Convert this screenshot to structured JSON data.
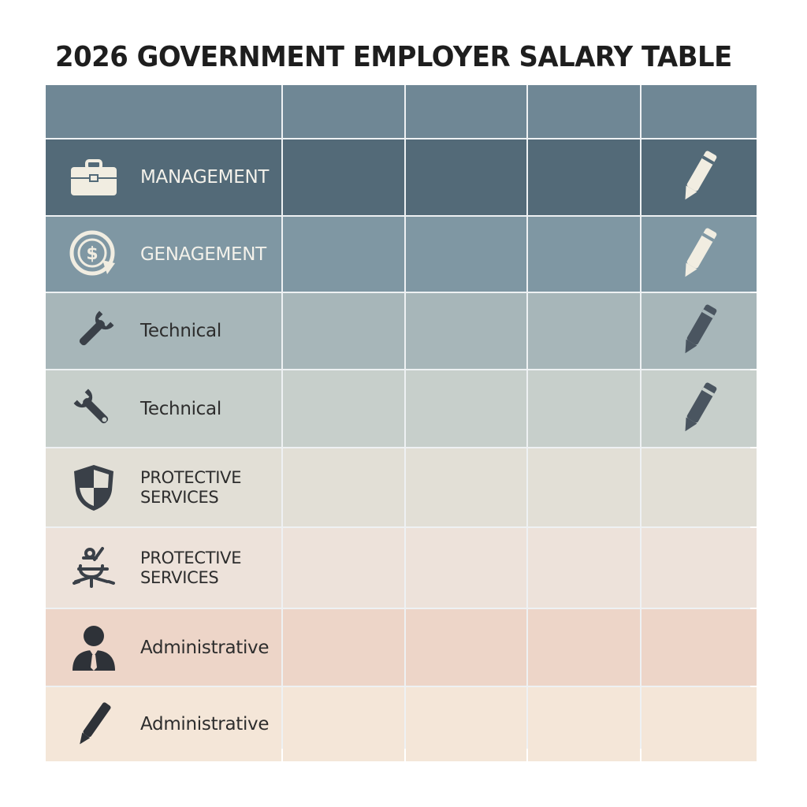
{
  "title": "2026 GOVERNMENT EMPLOYER SALARY TABLE",
  "colors": {
    "row_colors": [
      "#6f8795",
      "#536a78",
      "#7f97a3",
      "#a7b6b9",
      "#c7cfcb",
      "#e2dfd6",
      "#ede2da",
      "#edd5c8",
      "#f4e6d8"
    ],
    "light_icon": "#f1ede1",
    "dark_icon": "#3a4048"
  },
  "rows": [
    {
      "label": "MANAGEMENT",
      "icon": "briefcase-icon"
    },
    {
      "label": "GENAGEMENT",
      "icon": "dollar-cycle-icon"
    },
    {
      "label": "Technical",
      "icon": "wrench-icon"
    },
    {
      "label": "Technical",
      "icon": "wrench-icon"
    },
    {
      "label": "PROTECTIVE\nSERVICES",
      "icon": "shield-icon"
    },
    {
      "label": "PROTECTIVE\nSERVICES",
      "icon": "tools-icon"
    },
    {
      "label": "Administrative",
      "icon": "person-icon"
    },
    {
      "label": "Administrative",
      "icon": "pen-icon"
    }
  ]
}
